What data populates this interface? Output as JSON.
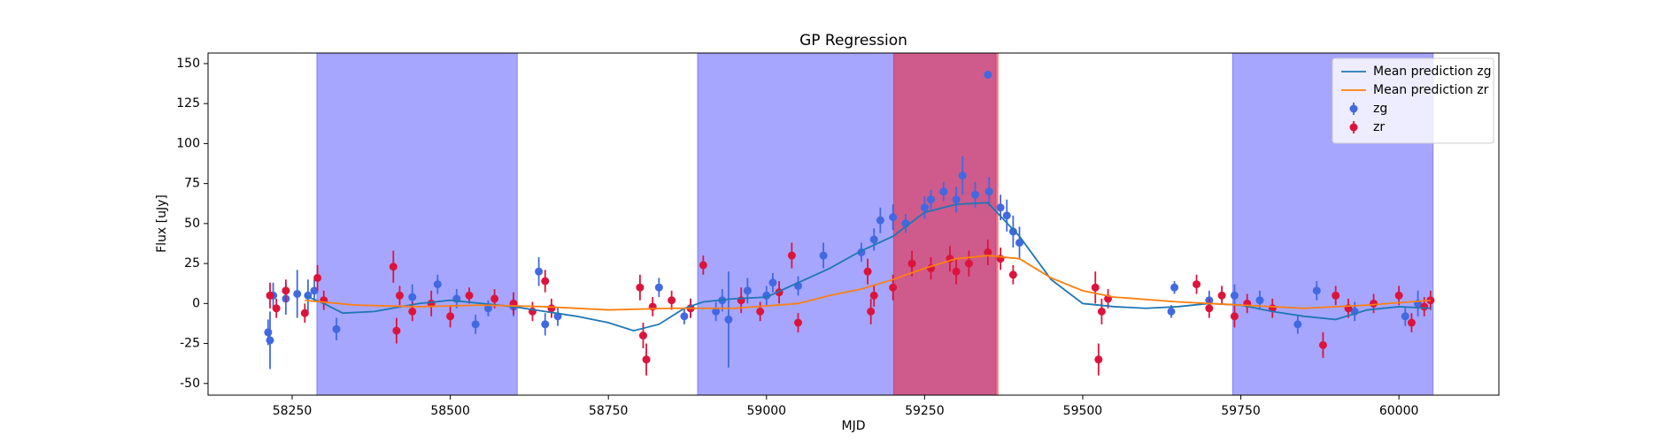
{
  "chart_data": {
    "type": "errorbar",
    "title": "GP Regression",
    "x_label": "MJD",
    "y_label": "Flux [uJy]",
    "xlim": [
      58117,
      60158
    ],
    "ylim": [
      -57.3,
      156.6
    ],
    "xticks": [
      58250,
      58500,
      58750,
      59000,
      59250,
      59500,
      59750,
      60000
    ],
    "yticks": [
      -50,
      -25,
      0,
      25,
      50,
      75,
      100,
      125,
      150
    ],
    "legend": "upper right",
    "spans": [
      {
        "x": [
          58289,
          58606
        ],
        "color": "#0000ff",
        "alpha": 0.35
      },
      {
        "x": [
          58891,
          59363
        ],
        "color": "#0000ff",
        "alpha": 0.35
      },
      {
        "x": [
          59201,
          59366
        ],
        "color": "#ff0000",
        "alpha": 0.45
      },
      {
        "x": [
          59737,
          60054
        ],
        "color": "#0000ff",
        "alpha": 0.35
      }
    ],
    "series": [
      {
        "name": "Mean prediction zg",
        "kind": "line",
        "color": "#1f77b4",
        "x": [
          58270,
          58300,
          58330,
          58380,
          58450,
          58500,
          58550,
          58600,
          58650,
          58700,
          58750,
          58790,
          58830,
          58870,
          58900,
          58950,
          59000,
          59050,
          59100,
          59150,
          59200,
          59250,
          59300,
          59350,
          59400,
          59450,
          59500,
          59550,
          59600,
          59650,
          59700,
          59750,
          59800,
          59850,
          59900,
          59950,
          60000,
          60050
        ],
        "values": [
          5,
          0,
          -6,
          -5,
          0,
          2,
          0,
          -2,
          -5,
          -8,
          -12,
          -17,
          -13,
          -3,
          1,
          3,
          4,
          13,
          22,
          33,
          42,
          57,
          62,
          63,
          42,
          15,
          0,
          -2,
          -3,
          -2,
          0,
          -1,
          -5,
          -8,
          -10,
          -4,
          -2,
          -3
        ]
      },
      {
        "name": "Mean prediction zr",
        "kind": "line",
        "color": "#ff7f0e",
        "x": [
          58270,
          58350,
          58450,
          58550,
          58650,
          58750,
          58850,
          58950,
          59050,
          59100,
          59150,
          59200,
          59250,
          59300,
          59350,
          59400,
          59450,
          59500,
          59550,
          59650,
          59750,
          59850,
          59950,
          60050
        ],
        "values": [
          2,
          -1,
          -2,
          -1,
          -2,
          -4,
          -3,
          -3,
          0,
          5,
          9,
          15,
          22,
          28,
          30,
          28,
          16,
          8,
          4,
          1,
          -1,
          -3,
          -1,
          2
        ]
      },
      {
        "name": "zg",
        "kind": "errorbar",
        "color": "#4169e1",
        "x": [
          58212,
          58215,
          58220,
          58240,
          58258,
          58275,
          58285,
          58320,
          58440,
          58480,
          58510,
          58540,
          58560,
          58600,
          58640,
          58650,
          58670,
          58830,
          58870,
          58880,
          58920,
          58930,
          58940,
          58970,
          59000,
          59010,
          59050,
          59090,
          59150,
          59170,
          59180,
          59200,
          59220,
          59250,
          59260,
          59280,
          59300,
          59310,
          59330,
          59350,
          59352,
          59370,
          59380,
          59390,
          59400,
          59640,
          59645,
          59700,
          59740,
          59780,
          59840,
          59870,
          59930,
          60010,
          60030
        ],
        "values": [
          -18,
          -23,
          5,
          3,
          6,
          5,
          8,
          -16,
          4,
          12,
          3,
          -13,
          -3,
          -2,
          20,
          -13,
          -8,
          10,
          -8,
          -3,
          -5,
          2,
          -10,
          8,
          5,
          13,
          11,
          30,
          32,
          40,
          52,
          54,
          50,
          60,
          65,
          70,
          65,
          80,
          68,
          143,
          70,
          60,
          55,
          45,
          38,
          -5,
          10,
          2,
          5,
          2,
          -13,
          8,
          -5,
          -8,
          0
        ],
        "errors": [
          8,
          18,
          8,
          10,
          15,
          10,
          7,
          7,
          8,
          6,
          6,
          6,
          5,
          6,
          9,
          7,
          6,
          6,
          5,
          6,
          6,
          7,
          30,
          8,
          6,
          6,
          6,
          8,
          6,
          7,
          8,
          8,
          6,
          7,
          6,
          6,
          8,
          12,
          8,
          2,
          9,
          8,
          10,
          10,
          10,
          4,
          4,
          6,
          7,
          6,
          6,
          6,
          6,
          6,
          8
        ]
      },
      {
        "name": "zr",
        "kind": "errorbar",
        "color": "#dc143c",
        "x": [
          58215,
          58225,
          58240,
          58270,
          58290,
          58300,
          58410,
          58415,
          58420,
          58440,
          58470,
          58500,
          58530,
          58570,
          58600,
          58630,
          58650,
          58660,
          58800,
          58805,
          58810,
          58820,
          58850,
          58880,
          58900,
          58960,
          58990,
          59020,
          59040,
          59050,
          59160,
          59165,
          59170,
          59200,
          59230,
          59260,
          59290,
          59300,
          59320,
          59350,
          59370,
          59390,
          59520,
          59525,
          59530,
          59540,
          59680,
          59700,
          59720,
          59740,
          59760,
          59800,
          59880,
          59900,
          59920,
          59960,
          60000,
          60020,
          60040,
          60050
        ],
        "values": [
          5,
          -3,
          8,
          -6,
          16,
          2,
          23,
          -17,
          5,
          -5,
          0,
          -8,
          5,
          3,
          0,
          -5,
          14,
          -3,
          10,
          -20,
          -35,
          -2,
          2,
          -3,
          24,
          2,
          -5,
          7,
          30,
          -12,
          20,
          -5,
          5,
          10,
          25,
          22,
          28,
          20,
          25,
          32,
          28,
          18,
          10,
          -35,
          -5,
          3,
          12,
          -3,
          5,
          -8,
          0,
          -3,
          -26,
          5,
          -3,
          0,
          5,
          -12,
          -2,
          2
        ],
        "errors": [
          8,
          6,
          7,
          6,
          8,
          6,
          10,
          8,
          6,
          6,
          8,
          7,
          5,
          6,
          7,
          6,
          7,
          6,
          8,
          8,
          10,
          6,
          6,
          6,
          6,
          8,
          6,
          7,
          8,
          6,
          8,
          8,
          7,
          8,
          8,
          7,
          8,
          8,
          8,
          8,
          7,
          6,
          10,
          10,
          8,
          6,
          6,
          6,
          6,
          7,
          6,
          6,
          8,
          6,
          6,
          6,
          6,
          6,
          6,
          6
        ]
      }
    ]
  }
}
